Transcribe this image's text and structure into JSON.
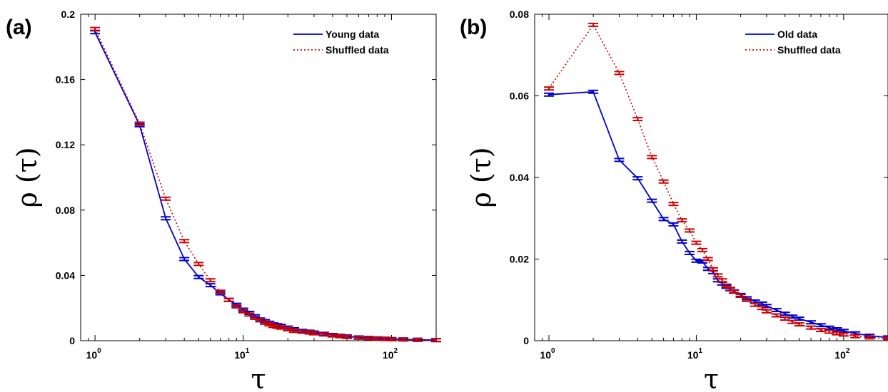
{
  "chart_data": [
    {
      "type": "line",
      "panel_label": "(a)",
      "xlabel": "τ",
      "ylabel": "ρ (τ)",
      "xscale": "log",
      "xlim": [
        0.8,
        200
      ],
      "ylim": [
        0,
        0.2
      ],
      "yticks": [
        "0",
        "0.04",
        "0.08",
        "0.12",
        "0.16",
        "0.2"
      ],
      "xticks": [
        {
          "base": "10",
          "exp": "0"
        },
        {
          "base": "10",
          "exp": "1"
        },
        {
          "base": "10",
          "exp": "2"
        }
      ],
      "legend_position": "top-right",
      "series": [
        {
          "name": "Young data",
          "color": "#0000cc",
          "style": "solid",
          "x": [
            1,
            2,
            3,
            4,
            5,
            6,
            7,
            8,
            9,
            10,
            11,
            12,
            13,
            14,
            15,
            16,
            17,
            18,
            20,
            22,
            25,
            28,
            30,
            35,
            40,
            45,
            50,
            60,
            70,
            80,
            90,
            100,
            120,
            150,
            200
          ],
          "values": [
            0.189,
            0.132,
            0.075,
            0.05,
            0.039,
            0.034,
            0.029,
            0.025,
            0.022,
            0.019,
            0.017,
            0.015,
            0.013,
            0.012,
            0.011,
            0.01,
            0.0095,
            0.009,
            0.008,
            0.007,
            0.006,
            0.0055,
            0.005,
            0.0042,
            0.0035,
            0.003,
            0.0026,
            0.002,
            0.0017,
            0.0014,
            0.0012,
            0.001,
            0.0008,
            0.0006,
            0.0004
          ]
        },
        {
          "name": "Shuffled data",
          "color": "#cc0000",
          "style": "dotted",
          "x": [
            1,
            2,
            3,
            4,
            5,
            6,
            7,
            8,
            9,
            10,
            11,
            12,
            13,
            14,
            15,
            16,
            17,
            18,
            20,
            22,
            25,
            28,
            30,
            35,
            40,
            45,
            50,
            60,
            70,
            80,
            90,
            100,
            120,
            150,
            200
          ],
          "values": [
            0.191,
            0.133,
            0.087,
            0.061,
            0.047,
            0.037,
            0.03,
            0.025,
            0.021,
            0.018,
            0.016,
            0.014,
            0.0125,
            0.011,
            0.01,
            0.009,
            0.0085,
            0.008,
            0.007,
            0.006,
            0.0055,
            0.005,
            0.0045,
            0.0038,
            0.0032,
            0.0027,
            0.0023,
            0.0018,
            0.0015,
            0.0012,
            0.001,
            0.0009,
            0.0007,
            0.0005,
            0.0003
          ]
        }
      ]
    },
    {
      "type": "line",
      "panel_label": "(b)",
      "xlabel": "τ",
      "ylabel": "ρ (τ)",
      "xscale": "log",
      "xlim": [
        0.8,
        200
      ],
      "ylim": [
        0,
        0.08
      ],
      "yticks": [
        "0",
        "0.02",
        "0.04",
        "0.06",
        "0.08"
      ],
      "xticks": [
        {
          "base": "10",
          "exp": "0"
        },
        {
          "base": "10",
          "exp": "1"
        },
        {
          "base": "10",
          "exp": "2"
        }
      ],
      "legend_position": "top-right",
      "series": [
        {
          "name": "Old data",
          "color": "#0000cc",
          "style": "solid",
          "x": [
            1,
            2,
            3,
            4,
            5,
            6,
            7,
            8,
            9,
            10,
            11,
            12,
            13,
            14,
            15,
            16,
            17,
            18,
            20,
            22,
            25,
            28,
            30,
            35,
            40,
            45,
            50,
            60,
            70,
            80,
            90,
            100,
            120,
            150,
            200
          ],
          "values": [
            0.0603,
            0.061,
            0.0443,
            0.0398,
            0.0343,
            0.0298,
            0.0285,
            0.0243,
            0.0215,
            0.0196,
            0.0194,
            0.0176,
            0.0168,
            0.0148,
            0.014,
            0.0132,
            0.0126,
            0.0121,
            0.0112,
            0.0104,
            0.0096,
            0.0091,
            0.0085,
            0.0075,
            0.0066,
            0.0059,
            0.0054,
            0.0045,
            0.0038,
            0.0032,
            0.0028,
            0.0024,
            0.0018,
            0.0012,
            0.0008
          ]
        },
        {
          "name": "Shuffled data",
          "color": "#cc0000",
          "style": "dotted",
          "x": [
            1,
            2,
            3,
            4,
            5,
            6,
            7,
            8,
            9,
            10,
            11,
            12,
            13,
            14,
            15,
            16,
            17,
            18,
            20,
            22,
            25,
            28,
            30,
            35,
            40,
            45,
            50,
            60,
            70,
            80,
            90,
            100,
            120,
            150,
            200
          ],
          "values": [
            0.0618,
            0.0774,
            0.0656,
            0.0543,
            0.045,
            0.039,
            0.0335,
            0.0295,
            0.027,
            0.024,
            0.0222,
            0.02,
            0.0175,
            0.016,
            0.0148,
            0.0135,
            0.0127,
            0.012,
            0.011,
            0.01,
            0.0088,
            0.008,
            0.0072,
            0.0062,
            0.0054,
            0.0046,
            0.004,
            0.0032,
            0.0026,
            0.0022,
            0.0018,
            0.0015,
            0.0011,
            0.0008,
            0.0005
          ]
        }
      ]
    }
  ]
}
